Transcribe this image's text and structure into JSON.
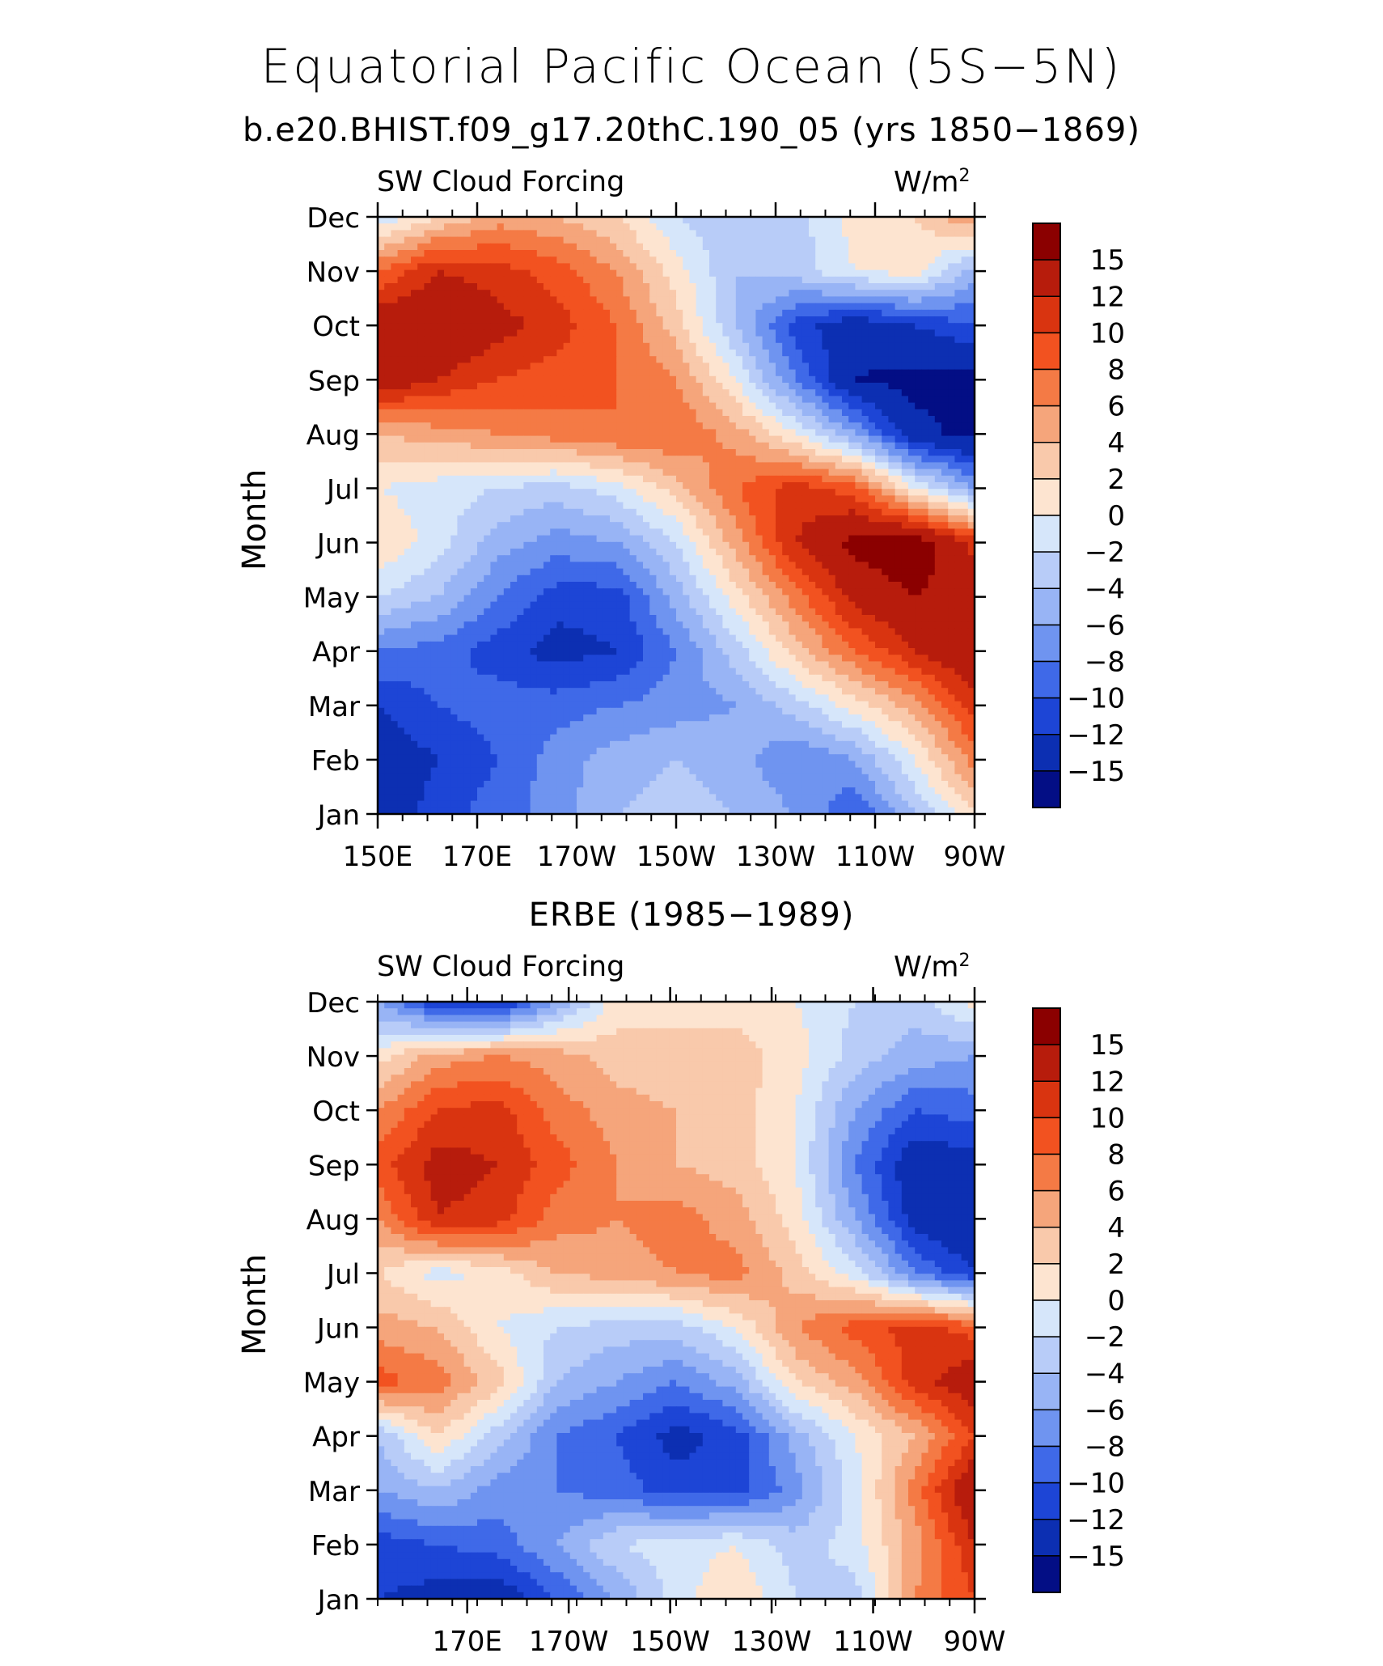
{
  "title": "Equatorial Pacific Ocean (5S−5N)",
  "subtitle": "b.e20.BHIST.f09_g17.20thC.190_05 (yrs 1850−1869)",
  "units_label": "W/m",
  "units_exp": "2",
  "colorbar": {
    "levels": [
      "15",
      "12",
      "10",
      "8",
      "6",
      "4",
      "2",
      "0",
      "−2",
      "−4",
      "−6",
      "−8",
      "−10",
      "−12",
      "−15"
    ],
    "colors": [
      "#8b0000",
      "#b71c0c",
      "#d93410",
      "#f25220",
      "#f47a45",
      "#f5a57b",
      "#f9c9ab",
      "#fde4d0",
      "#d6e6fa",
      "#b8ccf8",
      "#98b4f5",
      "#6f94f0",
      "#3f69e8",
      "#1d45d6",
      "#0c2fb2",
      "#030e85"
    ]
  },
  "chart_data": [
    {
      "type": "heatmap",
      "title": "",
      "panel_label": "SW Cloud Forcing",
      "xlabel": "",
      "ylabel": "Month",
      "x_ticks": [
        "150E",
        "170E",
        "170W",
        "150W",
        "130W",
        "110W",
        "90W"
      ],
      "y_ticks": [
        "Jan",
        "Feb",
        "Mar",
        "Apr",
        "May",
        "Jun",
        "Jul",
        "Aug",
        "Sep",
        "Oct",
        "Nov",
        "Dec"
      ],
      "xlim": [
        "150E",
        "90W"
      ],
      "units": "W/m2",
      "values": [
        [
          -14,
          -11,
          -9,
          -7,
          -4,
          -3,
          -4,
          -6,
          -10,
          -4,
          2
        ],
        [
          -14,
          -12,
          -10,
          -7,
          -5,
          -4,
          -5,
          -8,
          -6,
          0,
          7
        ],
        [
          -12,
          -10,
          -9,
          -9,
          -8,
          -7,
          -6,
          -3,
          1,
          5,
          11
        ],
        [
          -8,
          -9,
          -11,
          -13,
          -12,
          -8,
          -3,
          3,
          8,
          12,
          15
        ],
        [
          -2,
          -4,
          -8,
          -11,
          -11,
          -5,
          1,
          7,
          13,
          15,
          14
        ],
        [
          2,
          -1,
          -5,
          -7,
          -6,
          -2,
          5,
          12,
          16,
          17,
          11
        ],
        [
          0,
          -1,
          -2,
          -3,
          -1,
          3,
          8,
          11,
          9,
          0,
          -6
        ],
        [
          4,
          5,
          6,
          7,
          8,
          8,
          5,
          0,
          -6,
          -14,
          -16
        ],
        [
          14,
          12,
          10,
          9,
          8,
          6,
          0,
          -8,
          -15,
          -16,
          -16
        ],
        [
          14,
          15,
          13,
          11,
          8,
          3,
          -4,
          -11,
          -14,
          -12,
          -10
        ],
        [
          8,
          12,
          11,
          9,
          6,
          1,
          -4,
          -3,
          0,
          1,
          -5
        ],
        [
          -2,
          2,
          5,
          4,
          2,
          -2,
          -4,
          -3,
          1,
          2,
          6
        ]
      ]
    },
    {
      "type": "heatmap",
      "title": "ERBE (1985−1989)",
      "panel_label": "SW Cloud Forcing",
      "xlabel": "",
      "ylabel": "Month",
      "x_ticks": [
        "170E",
        "170W",
        "150W",
        "130W",
        "110W",
        "90W"
      ],
      "y_ticks": [
        "Jan",
        "Feb",
        "Mar",
        "Apr",
        "May",
        "Jun",
        "Jul",
        "Aug",
        "Sep",
        "Oct",
        "Nov",
        "Dec"
      ],
      "units": "W/m2",
      "values": [
        [
          -12,
          -13,
          -14,
          -10,
          -6,
          -1,
          2,
          -2,
          -3,
          6,
          10
        ],
        [
          -11,
          -10,
          -9,
          -6,
          -2,
          -1,
          0,
          -3,
          -1,
          5,
          12
        ],
        [
          -6,
          -4,
          -7,
          -8,
          -9,
          -11,
          -11,
          -7,
          -1,
          7,
          15
        ],
        [
          -4,
          2,
          -3,
          -8,
          -10,
          -13,
          -11,
          -5,
          0,
          4,
          10
        ],
        [
          9,
          7,
          3,
          -4,
          -6,
          -8,
          -5,
          2,
          5,
          11,
          14
        ],
        [
          5,
          4,
          0,
          -2,
          -3,
          -3,
          0,
          6,
          9,
          11,
          9
        ],
        [
          2,
          -1,
          1,
          4,
          5,
          6,
          7,
          3,
          -1,
          -8,
          -12
        ],
        [
          6,
          12,
          11,
          7,
          6,
          7,
          5,
          1,
          -6,
          -13,
          -15
        ],
        [
          9,
          13,
          12,
          9,
          6,
          4,
          3,
          0,
          -8,
          -14,
          -13
        ],
        [
          6,
          10,
          11,
          7,
          5,
          4,
          3,
          0,
          -6,
          -10,
          -9
        ],
        [
          1,
          5,
          6,
          5,
          3,
          2,
          3,
          1,
          -3,
          -5,
          -6
        ],
        [
          -6,
          -12,
          -13,
          -6,
          1,
          2,
          1,
          0,
          -2,
          -3,
          1
        ]
      ]
    }
  ]
}
